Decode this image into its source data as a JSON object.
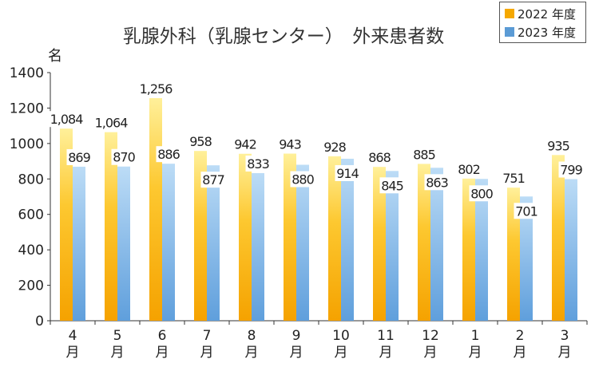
{
  "chart_data": {
    "type": "bar",
    "title": "乳腺外科（乳腺センター）　外来患者数",
    "ylabel": "名",
    "xlabel": "",
    "ylim": [
      0,
      1400
    ],
    "yticks": [
      0,
      200,
      400,
      600,
      800,
      1000,
      1200,
      1400
    ],
    "grid": false,
    "legend_position": "top-right",
    "categories": [
      {
        "num": "4",
        "unit": "月"
      },
      {
        "num": "5",
        "unit": "月"
      },
      {
        "num": "6",
        "unit": "月"
      },
      {
        "num": "7",
        "unit": "月"
      },
      {
        "num": "8",
        "unit": "月"
      },
      {
        "num": "9",
        "unit": "月"
      },
      {
        "num": "10",
        "unit": "月"
      },
      {
        "num": "11",
        "unit": "月"
      },
      {
        "num": "12",
        "unit": "月"
      },
      {
        "num": "1",
        "unit": "月"
      },
      {
        "num": "2",
        "unit": "月"
      },
      {
        "num": "3",
        "unit": "月"
      }
    ],
    "series": [
      {
        "name": "2022 年度",
        "color": "#f5a800",
        "values": [
          1084,
          1064,
          1256,
          958,
          942,
          943,
          928,
          868,
          885,
          802,
          751,
          935
        ],
        "labels": [
          "1,084",
          "1,064",
          "1,256",
          "958",
          "942",
          "943",
          "928",
          "868",
          "885",
          "802",
          "751",
          "935"
        ]
      },
      {
        "name": "2023 年度",
        "color": "#5b9bd5",
        "values": [
          869,
          870,
          886,
          877,
          833,
          880,
          914,
          845,
          863,
          800,
          701,
          799
        ],
        "labels": [
          "869",
          "870",
          "886",
          "877",
          "833",
          "880",
          "914",
          "845",
          "863",
          "800",
          "701",
          "799"
        ]
      }
    ]
  }
}
